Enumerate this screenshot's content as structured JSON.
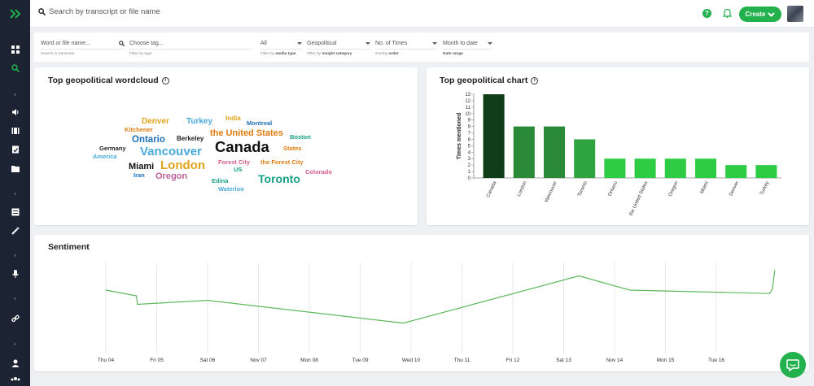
{
  "topbar": {
    "search_placeholder": "Search by transcript or file name",
    "create_label": "Create"
  },
  "filters": [
    {
      "value": "Word or file name...",
      "sub_prefix": "Search in",
      "sub_bold": "transcript"
    },
    {
      "value": "Choose tag...",
      "sub_prefix": "Filter by",
      "sub_bold": "tags"
    },
    {
      "value": "All",
      "sub_prefix": "Filter by",
      "sub_bold": "media type"
    },
    {
      "value": "Geopolitical",
      "sub_prefix": "Filter by",
      "sub_bold": "insight category"
    },
    {
      "value": "No. of Times",
      "sub_prefix": "Sorting",
      "sub_bold": "order"
    },
    {
      "value": "Month to date",
      "sub_prefix": "",
      "sub_bold": "Date range"
    }
  ],
  "wordcloud": {
    "title": "Top geopolitical wordcloud",
    "words": [
      {
        "text": "Denver",
        "color": "#e0a31a"
      },
      {
        "text": "Turkey",
        "color": "#4aa9dc"
      },
      {
        "text": "India",
        "color": "#e0a31a"
      },
      {
        "text": "Montreal",
        "color": "#1d6fb8"
      },
      {
        "text": "Kitchener",
        "color": "#e07b10"
      },
      {
        "text": "the United States",
        "color": "#e07b10"
      },
      {
        "text": "Ontario",
        "color": "#1d6fb8"
      },
      {
        "text": "Berkeley",
        "color": "#222222"
      },
      {
        "text": "Boston",
        "color": "#16a085"
      },
      {
        "text": "Canada",
        "color": "#111111"
      },
      {
        "text": "Germany",
        "color": "#222222"
      },
      {
        "text": "Vancouver",
        "color": "#4aa9dc"
      },
      {
        "text": "States",
        "color": "#e07b10"
      },
      {
        "text": "America",
        "color": "#4aa9dc"
      },
      {
        "text": "Miami",
        "color": "#111111"
      },
      {
        "text": "London",
        "color": "#e0a31a"
      },
      {
        "text": "Forest City",
        "color": "#d45e8a"
      },
      {
        "text": "the Forest City",
        "color": "#e07b10"
      },
      {
        "text": "Iran",
        "color": "#1d6fb8"
      },
      {
        "text": "Oregon",
        "color": "#c0609a"
      },
      {
        "text": "US",
        "color": "#16a085"
      },
      {
        "text": "Colorado",
        "color": "#d45e8a"
      },
      {
        "text": "Toronto",
        "color": "#16a085"
      },
      {
        "text": "Edina",
        "color": "#16a085"
      },
      {
        "text": "Waterloo",
        "color": "#4aa9dc"
      }
    ]
  },
  "chart_data": [
    {
      "type": "bar",
      "title": "Top geopolitical chart",
      "ylabel": "Times mentioned",
      "xlabel": "",
      "ylim": [
        0,
        13
      ],
      "yticks": [
        "0",
        "1",
        "2",
        "3",
        "4",
        "5",
        "6",
        "7",
        "8",
        "9",
        "10",
        "11",
        "12",
        "13"
      ],
      "categories": [
        "Canada",
        "London",
        "Vancouver",
        "Toronto",
        "Ontario",
        "the United States",
        "Oregon",
        "Miami",
        "Denver",
        "Turkey"
      ],
      "values": [
        13,
        8,
        8,
        6,
        3,
        3,
        3,
        3,
        2,
        2
      ],
      "colors": [
        "#0e3d17",
        "#2a8a37",
        "#2a8a37",
        "#2ea33f",
        "#2ecc45",
        "#2ecc45",
        "#2ecc45",
        "#2ecc45",
        "#2ecc45",
        "#2ecc45"
      ]
    },
    {
      "type": "line",
      "title": "Sentiment",
      "categories": [
        "Thu 04",
        "Fri 05",
        "Sat 06",
        "Nov 07",
        "Mon 08",
        "Tue 09",
        "Wed 10",
        "Thu 11",
        "Fri 12",
        "Sat 13",
        "Nov 14",
        "Mon 15",
        "Tue 16"
      ],
      "series": [
        {
          "x": [
            0,
            0.6,
            0.62,
            2,
            5.85,
            9.3,
            10.3,
            13.05,
            13.1,
            13.15
          ],
          "y": [
            0.2,
            0.1,
            -0.05,
            0.02,
            -0.38,
            0.45,
            0.2,
            0.14,
            0.22,
            0.55
          ]
        }
      ],
      "line_color": "#5cb85c"
    }
  ]
}
